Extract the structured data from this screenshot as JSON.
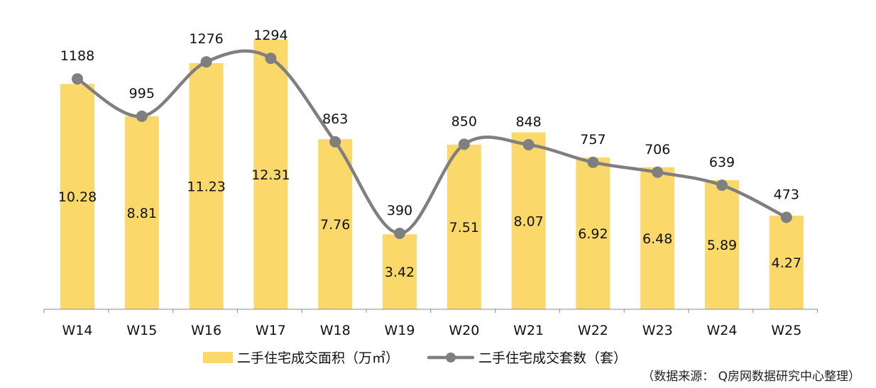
{
  "chart_data": {
    "type": "bar",
    "categories": [
      "W14",
      "W15",
      "W16",
      "W17",
      "W18",
      "W19",
      "W20",
      "W21",
      "W22",
      "W23",
      "W24",
      "W25"
    ],
    "series": [
      {
        "name": "二手住宅成交面积（万㎡）",
        "type": "bar",
        "values": [
          10.28,
          8.81,
          11.23,
          12.31,
          7.76,
          3.42,
          7.51,
          8.07,
          6.92,
          6.48,
          5.89,
          4.27
        ],
        "labels": [
          "10.28",
          "8.81",
          "11.23",
          "12.31",
          "7.76",
          "3.42",
          "7.51",
          "8.07",
          "6.92",
          "6.48",
          "5.89",
          "4.27"
        ]
      },
      {
        "name": "二手住宅成交套数（套）",
        "type": "line",
        "values": [
          1188,
          995,
          1276,
          1294,
          863,
          390,
          850,
          848,
          757,
          706,
          639,
          473
        ],
        "labels": [
          "1188",
          "995",
          "1276",
          "1294",
          "863",
          "390",
          "850",
          "848",
          "757",
          "706",
          "639",
          "473"
        ]
      }
    ],
    "colors": {
      "bar": "#FAD96A",
      "line": "#7F7F7F",
      "marker": "#7F7F7F",
      "axis": "#8C8C8C",
      "text": "#111111"
    },
    "legend_position": "bottom",
    "grid": false,
    "source_note": "（数据来源： Q房网数据研究中心整理）"
  }
}
